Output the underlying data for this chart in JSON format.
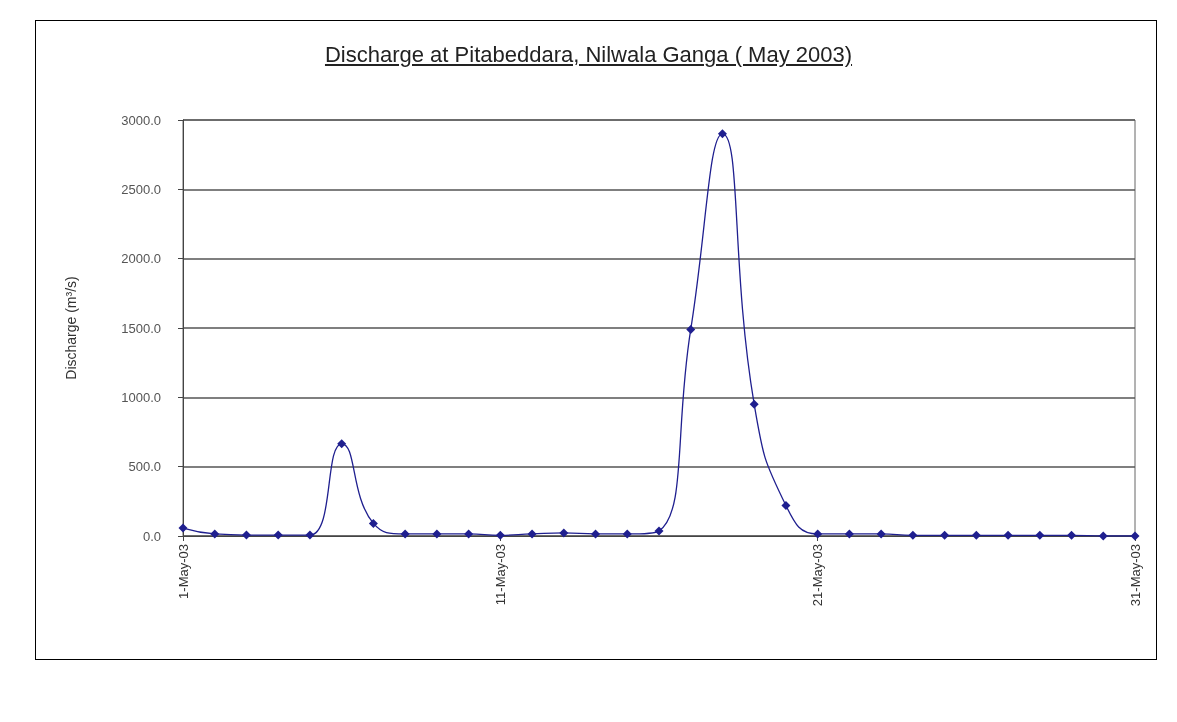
{
  "chart_data": {
    "type": "line",
    "title": "Discharge at Pitabeddara, Nilwala Ganga ( May 2003)",
    "ylabel": "Discharge (m³/s)",
    "x": [
      "2003-05-01",
      "2003-05-02",
      "2003-05-03",
      "2003-05-04",
      "2003-05-05",
      "2003-05-06",
      "2003-05-07",
      "2003-05-08",
      "2003-05-09",
      "2003-05-10",
      "2003-05-11",
      "2003-05-12",
      "2003-05-13",
      "2003-05-14",
      "2003-05-15",
      "2003-05-16",
      "2003-05-17",
      "2003-05-18",
      "2003-05-19",
      "2003-05-20",
      "2003-05-21",
      "2003-05-22",
      "2003-05-23",
      "2003-05-24",
      "2003-05-25",
      "2003-05-26",
      "2003-05-27",
      "2003-05-28",
      "2003-05-29",
      "2003-05-30",
      "2003-05-31"
    ],
    "series": [
      {
        "color": "#1f1f8f",
        "values": [
          57,
          15,
          7,
          7,
          7,
          665,
          91,
          15,
          15,
          15,
          5,
          15,
          22,
          15,
          15,
          36,
          1490,
          2900,
          950,
          220,
          15,
          15,
          15,
          5,
          5,
          5,
          5,
          5,
          5,
          0,
          0
        ]
      }
    ],
    "xlim": [
      "2003-05-01",
      "2003-05-31"
    ],
    "xticks": [
      {
        "value": "2003-05-01",
        "label": "1-May-03"
      },
      {
        "value": "2003-05-11",
        "label": "11-May-03"
      },
      {
        "value": "2003-05-21",
        "label": "21-May-03"
      },
      {
        "value": "2003-05-31",
        "label": "31-May-03"
      }
    ],
    "ylim": [
      0,
      3000
    ],
    "yticks": [
      {
        "value": 0,
        "label": "0.0"
      },
      {
        "value": 500,
        "label": "500.0"
      },
      {
        "value": 1000,
        "label": "1000.0"
      },
      {
        "value": 1500,
        "label": "1500.0"
      },
      {
        "value": 2000,
        "label": "2000.0"
      },
      {
        "value": 2500,
        "label": "2500.0"
      },
      {
        "value": 3000,
        "label": "3000.0"
      }
    ],
    "grid": "y",
    "marker": "diamond",
    "line_style": "solid"
  }
}
